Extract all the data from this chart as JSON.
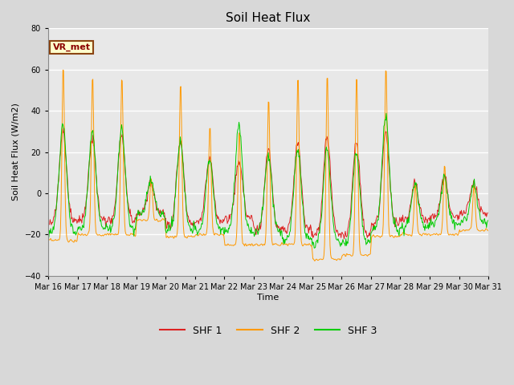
{
  "title": "Soil Heat Flux",
  "ylabel": "Soil Heat Flux (W/m2)",
  "xlabel": "Time",
  "ylim": [
    -40,
    80
  ],
  "yticks": [
    -40,
    -20,
    0,
    20,
    40,
    60,
    80
  ],
  "legend_labels": [
    "SHF 1",
    "SHF 2",
    "SHF 3"
  ],
  "colors": [
    "#dd2222",
    "#ff9900",
    "#00cc00"
  ],
  "annotation_text": "VR_met",
  "bg_color": "#e8e8e8",
  "grid_color": "#ffffff",
  "n_days": 15,
  "start_day": 16,
  "figsize": [
    6.4,
    4.8
  ],
  "dpi": 100
}
